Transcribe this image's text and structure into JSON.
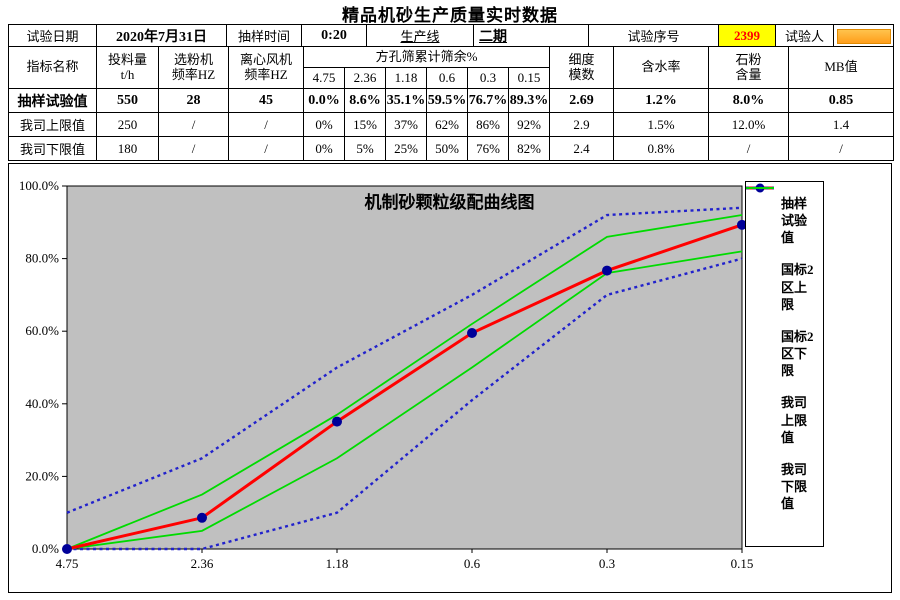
{
  "page_title": "精品机砂生产质量实时数据",
  "info_row": {
    "date_label": "试验日期",
    "date_value": "2020年7月31日",
    "time_label": "抽样时间",
    "time_value": "0:20",
    "line_label": "生产线",
    "line_value": "二期",
    "serial_label": "试验序号",
    "serial_value": "2399",
    "tester_label": "试验人"
  },
  "colors": {
    "serial_bg": "#FFFF00",
    "serial_text": "#FF0000",
    "redaction": "#FFA83A",
    "plot_bg": "#C0C0C0",
    "sample_line": "#FF0000",
    "marker": "#000099",
    "gb_line": "#2222CC",
    "company_line": "#00DB00"
  },
  "table": {
    "header": {
      "name": "指标名称",
      "feed": "投料量\nt/h",
      "classifier": "选粉机\n频率HZ",
      "fan": "离心风机\n频率HZ",
      "sieve_group": "方孔筛累计筛余%",
      "sieves": [
        "4.75",
        "2.36",
        "1.18",
        "0.6",
        "0.3",
        "0.15"
      ],
      "fineness": "细度\n模数",
      "moisture": "含水率",
      "stone_powder": "石粉\n含量",
      "mb": "MB值"
    },
    "rows": [
      {
        "label": "抽样试验值",
        "values": [
          "550",
          "28",
          "45",
          "0.0%",
          "8.6%",
          "35.1%",
          "59.5%",
          "76.7%",
          "89.3%",
          "2.69",
          "1.2%",
          "8.0%",
          "0.85"
        ]
      },
      {
        "label": "我司上限值",
        "values": [
          "250",
          "/",
          "/",
          "0%",
          "15%",
          "37%",
          "62%",
          "86%",
          "92%",
          "2.9",
          "1.5%",
          "12.0%",
          "1.4"
        ]
      },
      {
        "label": "我司下限值",
        "values": [
          "180",
          "/",
          "/",
          "0%",
          "5%",
          "25%",
          "50%",
          "76%",
          "82%",
          "2.4",
          "0.8%",
          "/",
          "/"
        ]
      }
    ]
  },
  "chart_data": {
    "type": "line",
    "title": "机制砂颗粒级配曲线图",
    "x_categories": [
      "4.75",
      "2.36",
      "1.18",
      "0.6",
      "0.3",
      "0.15"
    ],
    "y_ticks": [
      {
        "value": 100,
        "label": "100.0%"
      },
      {
        "value": 80,
        "label": "80.0%"
      },
      {
        "value": 60,
        "label": "60.0%"
      },
      {
        "value": 40,
        "label": "40.0%"
      },
      {
        "value": 20,
        "label": "20.0%"
      },
      {
        "value": 0,
        "label": "0.0%"
      }
    ],
    "ylim": [
      0,
      100
    ],
    "grid": false,
    "plot_bg": "#C0C0C0",
    "legend_position": "right",
    "series": [
      {
        "name": "抽样试验值",
        "key": "sample",
        "values": [
          0.0,
          8.6,
          35.1,
          59.5,
          76.7,
          89.3
        ],
        "color": "#FF0000",
        "style": "solid",
        "width": 3,
        "marker": "circle",
        "marker_color": "#000099"
      },
      {
        "name": "国标2区上限",
        "key": "gb-upper",
        "values": [
          10,
          25,
          50,
          70,
          92,
          94
        ],
        "color": "#2222CC",
        "style": "dotted",
        "width": 2.4
      },
      {
        "name": "国标2区下限",
        "key": "gb-lower",
        "values": [
          0,
          0,
          10,
          41,
          70,
          80
        ],
        "color": "#2222CC",
        "style": "dotted",
        "width": 2.4
      },
      {
        "name": "我司上限值",
        "key": "company-upper",
        "values": [
          0,
          15,
          37,
          62,
          86,
          92
        ],
        "color": "#00DB00",
        "style": "solid",
        "width": 1.8
      },
      {
        "name": "我司下限值",
        "key": "company-lower",
        "values": [
          0,
          5,
          25,
          50,
          76,
          82
        ],
        "color": "#00DB00",
        "style": "solid",
        "width": 1.8
      }
    ]
  }
}
